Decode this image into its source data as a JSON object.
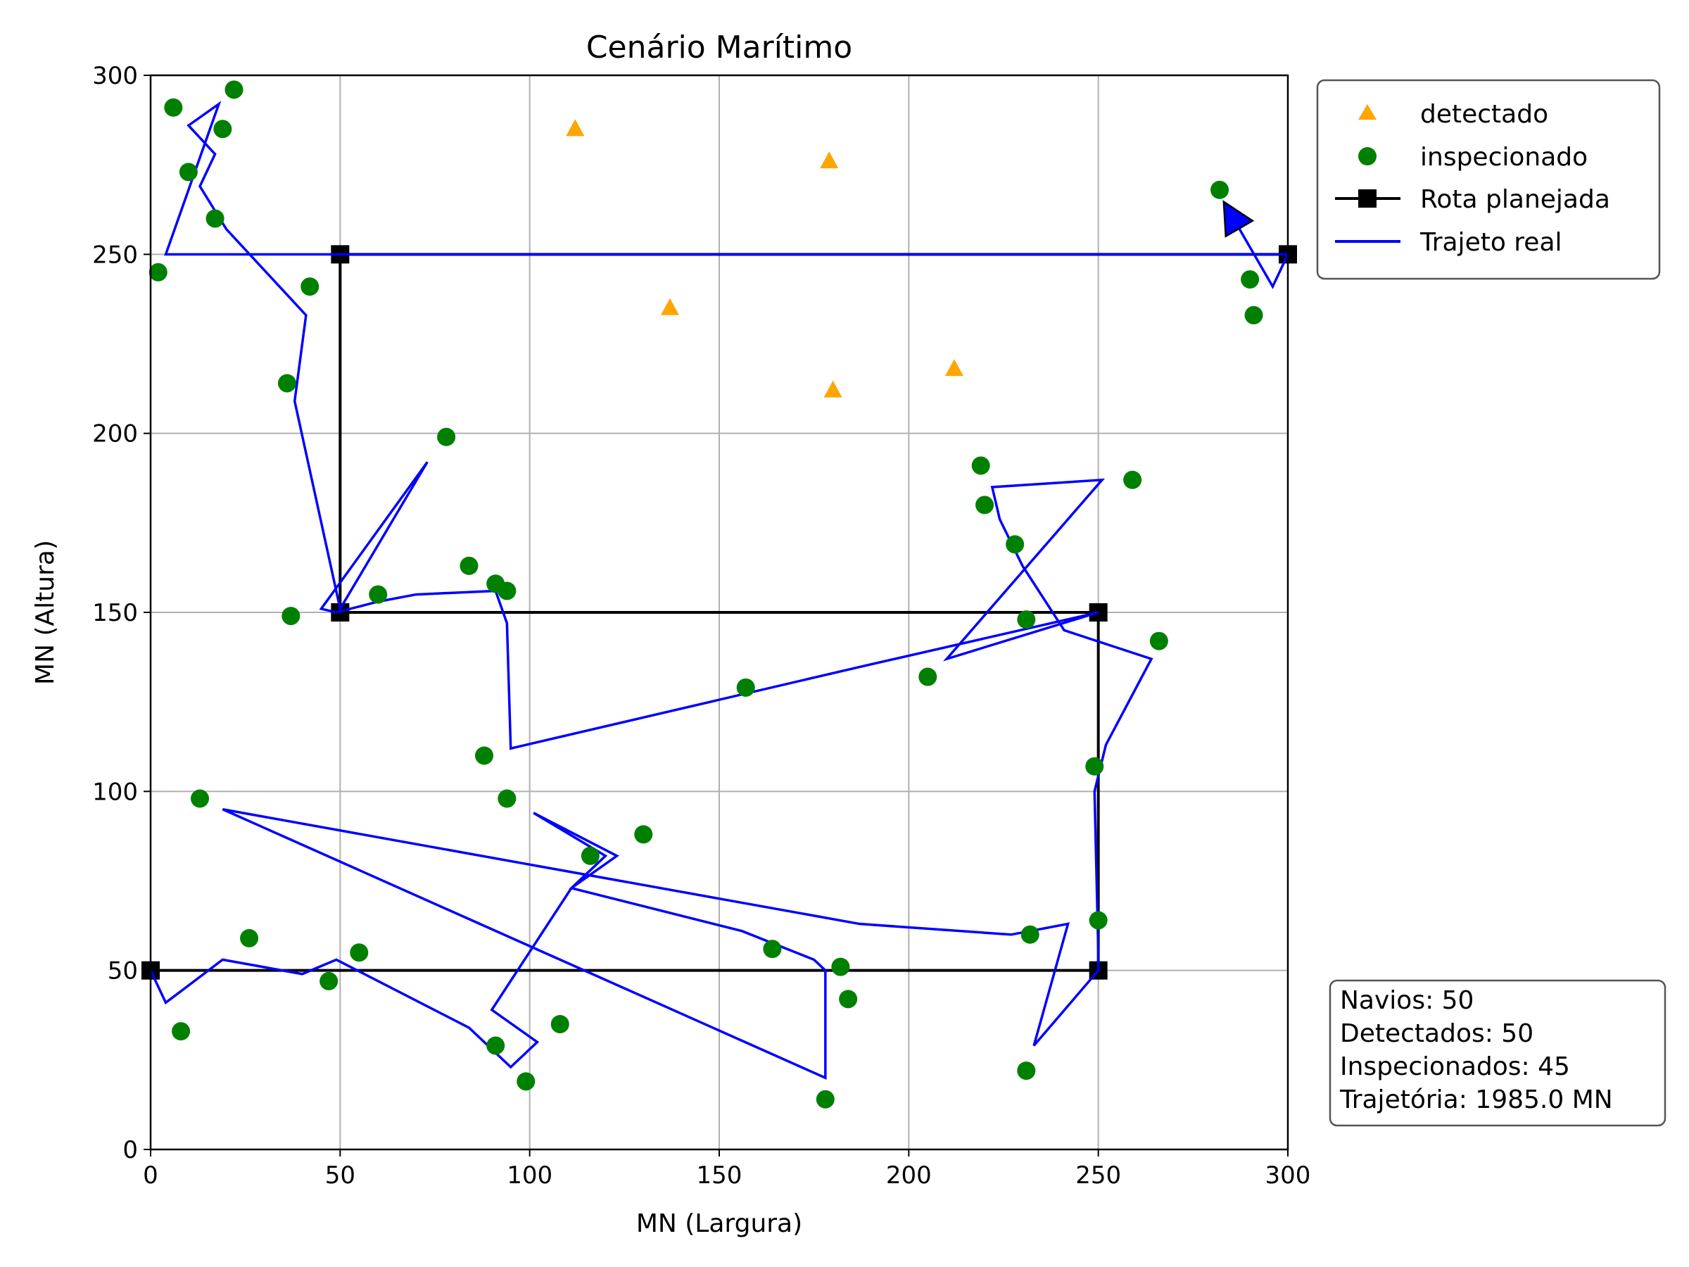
{
  "chart_data": {
    "type": "scatter",
    "title": "Cenário Marítimo",
    "xlabel": "MN (Largura)",
    "ylabel": "MN (Altura)",
    "xlim": [
      0,
      300
    ],
    "ylim": [
      0,
      300
    ],
    "xticks": [
      "0",
      "50",
      "100",
      "150",
      "200",
      "250",
      "300"
    ],
    "yticks": [
      "0",
      "50",
      "100",
      "150",
      "200",
      "250",
      "300"
    ],
    "grid": true,
    "legend_position": "outside-top-right",
    "series": [
      {
        "name": "detectado",
        "kind": "scatter",
        "marker": "triangle",
        "color": "#ffa500",
        "points": [
          [
            112,
            285
          ],
          [
            179,
            276
          ],
          [
            137,
            235
          ],
          [
            180,
            212
          ],
          [
            212,
            218
          ]
        ]
      },
      {
        "name": "inspecionado",
        "kind": "scatter",
        "marker": "circle",
        "color": "#008000",
        "points": [
          [
            6,
            291
          ],
          [
            22,
            296
          ],
          [
            19,
            285
          ],
          [
            10,
            273
          ],
          [
            17,
            260
          ],
          [
            2,
            245
          ],
          [
            42,
            241
          ],
          [
            36,
            214
          ],
          [
            78,
            199
          ],
          [
            37,
            149
          ],
          [
            60,
            155
          ],
          [
            84,
            163
          ],
          [
            91,
            158
          ],
          [
            94,
            156
          ],
          [
            88,
            110
          ],
          [
            94,
            98
          ],
          [
            13,
            98
          ],
          [
            26,
            59
          ],
          [
            47,
            47
          ],
          [
            55,
            55
          ],
          [
            8,
            33
          ],
          [
            91,
            29
          ],
          [
            99,
            19
          ],
          [
            108,
            35
          ],
          [
            116,
            82
          ],
          [
            130,
            88
          ],
          [
            157,
            129
          ],
          [
            164,
            56
          ],
          [
            182,
            51
          ],
          [
            184,
            42
          ],
          [
            178,
            14
          ],
          [
            205,
            132
          ],
          [
            219,
            191
          ],
          [
            220,
            180
          ],
          [
            228,
            169
          ],
          [
            231,
            148
          ],
          [
            232,
            60
          ],
          [
            231,
            22
          ],
          [
            249,
            107
          ],
          [
            250,
            64
          ],
          [
            259,
            187
          ],
          [
            266,
            142
          ],
          [
            282,
            268
          ],
          [
            290,
            243
          ],
          [
            291,
            233
          ]
        ]
      },
      {
        "name": "Rota planejada",
        "kind": "line",
        "marker": "square",
        "color": "#000000",
        "points": [
          [
            0,
            50
          ],
          [
            250,
            50
          ],
          [
            250,
            150
          ],
          [
            50,
            150
          ],
          [
            50,
            250
          ],
          [
            300,
            250
          ]
        ]
      },
      {
        "name": "Trajeto real",
        "kind": "line",
        "color": "#0000ff",
        "points": [
          [
            0,
            50
          ],
          [
            4,
            41
          ],
          [
            19,
            53
          ],
          [
            40,
            49
          ],
          [
            49,
            53
          ],
          [
            84,
            34
          ],
          [
            95,
            23
          ],
          [
            102,
            30
          ],
          [
            90,
            39
          ],
          [
            111,
            73
          ],
          [
            123,
            82
          ],
          [
            101,
            94
          ],
          [
            120,
            82
          ],
          [
            111,
            73
          ],
          [
            156,
            61
          ],
          [
            175,
            53
          ],
          [
            178,
            50
          ],
          [
            178,
            20
          ],
          [
            19,
            95
          ],
          [
            187,
            63
          ],
          [
            227,
            60
          ],
          [
            232,
            61
          ],
          [
            242,
            63
          ],
          [
            233,
            29
          ],
          [
            250,
            50
          ],
          [
            250,
            55
          ],
          [
            249,
            100
          ],
          [
            252,
            113
          ],
          [
            264,
            137
          ],
          [
            241,
            145
          ],
          [
            230,
            163
          ],
          [
            224,
            176
          ],
          [
            222,
            185
          ],
          [
            251,
            187
          ],
          [
            210,
            137
          ],
          [
            250,
            150
          ],
          [
            188,
            135
          ],
          [
            95,
            112
          ],
          [
            94,
            147
          ],
          [
            91,
            156
          ],
          [
            70,
            155
          ],
          [
            60,
            153
          ],
          [
            49,
            150
          ],
          [
            45,
            151
          ],
          [
            73,
            192
          ],
          [
            50,
            151
          ],
          [
            38,
            209
          ],
          [
            41,
            233
          ],
          [
            20,
            257
          ],
          [
            13,
            269
          ],
          [
            17,
            278
          ],
          [
            10,
            286
          ],
          [
            18,
            292
          ],
          [
            4,
            250
          ],
          [
            30,
            250
          ],
          [
            300,
            250
          ],
          [
            296,
            241
          ],
          [
            284,
            263
          ]
        ],
        "end_marker": "arrow"
      }
    ],
    "stats": {
      "ships": "Navios: 50",
      "detected": "Detectados: 50",
      "inspected": "Inspecionados: 45",
      "trajectory": "Trajetória: 1985.0 MN"
    }
  }
}
